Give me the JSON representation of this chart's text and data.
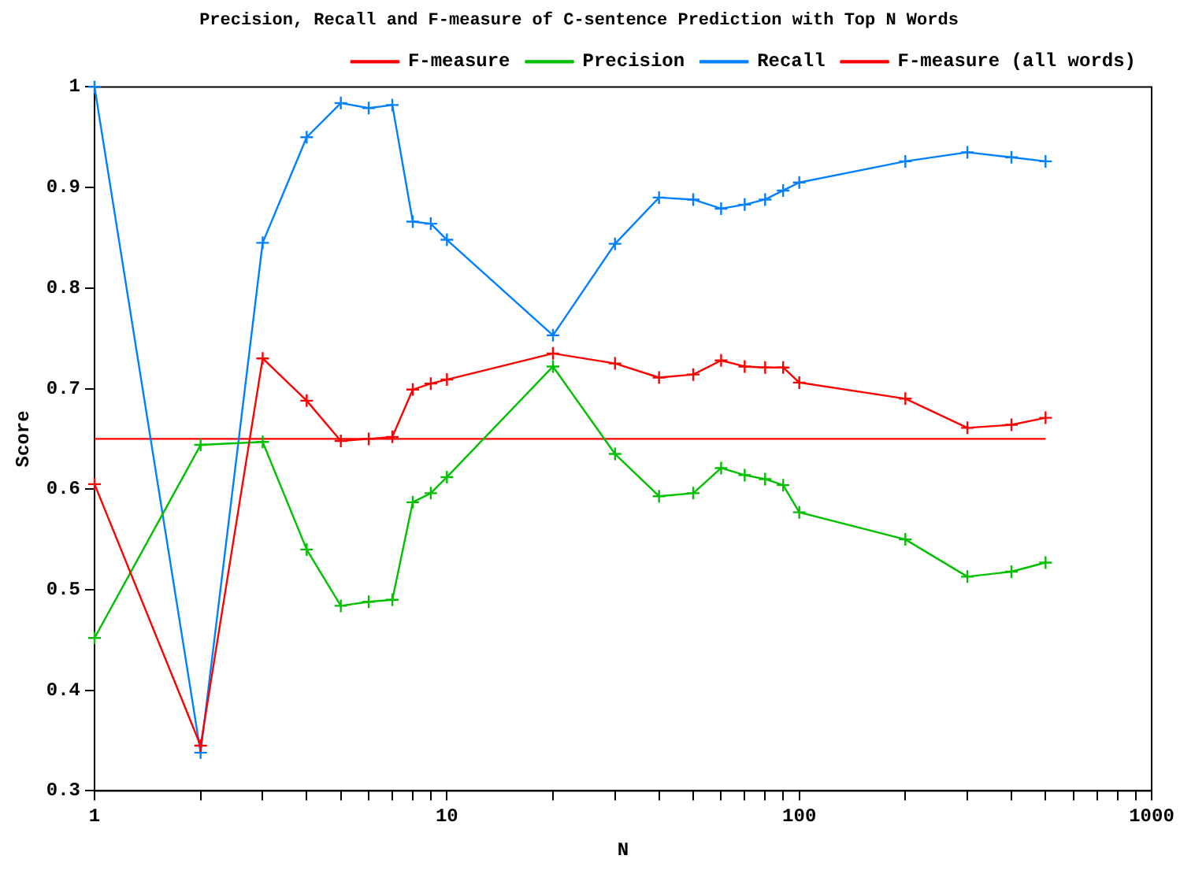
{
  "chart_data": {
    "type": "line",
    "title": "Precision, Recall and F-measure of C-sentence Prediction with Top N Words",
    "xlabel": "N",
    "ylabel": "Score",
    "log": "x",
    "grid": false,
    "legend": "top right",
    "x": [
      1,
      2,
      3,
      4,
      5,
      6,
      7,
      8,
      9,
      10,
      20,
      30,
      40,
      50,
      60,
      70,
      80,
      90,
      100,
      200,
      300,
      400,
      500
    ],
    "series": [
      {
        "name": "F-measure",
        "color": "#ff0000",
        "marker": "cross",
        "values": [
          0.605,
          0.345,
          0.73,
          0.688,
          0.648,
          0.65,
          0.652,
          0.699,
          0.705,
          0.709,
          0.735,
          0.725,
          0.711,
          0.714,
          0.728,
          0.722,
          0.721,
          0.721,
          0.706,
          0.69,
          0.661,
          0.664,
          0.671
        ]
      },
      {
        "name": "Precision",
        "color": "#00c000",
        "marker": "cross",
        "values": [
          0.452,
          0.644,
          0.647,
          0.54,
          0.484,
          0.488,
          0.49,
          0.587,
          0.596,
          0.612,
          0.722,
          0.635,
          0.593,
          0.596,
          0.621,
          0.614,
          0.61,
          0.604,
          0.577,
          0.55,
          0.513,
          0.518,
          0.527
        ]
      },
      {
        "name": "Recall",
        "color": "#0080ff",
        "marker": "cross",
        "values": [
          1.0,
          0.338,
          0.845,
          0.95,
          0.984,
          0.979,
          0.982,
          0.866,
          0.864,
          0.848,
          0.753,
          0.844,
          0.89,
          0.888,
          0.879,
          0.883,
          0.888,
          0.897,
          0.905,
          0.926,
          0.935,
          0.93,
          0.926
        ]
      },
      {
        "name": "F-measure (all words)",
        "color": "#ff0000",
        "marker": "none",
        "x": [
          1,
          500
        ],
        "values": [
          0.65,
          0.65
        ]
      }
    ],
    "xlim": [
      1,
      1000
    ],
    "xticks": [
      1,
      {
        "value": 2,
        "label": null
      },
      {
        "value": 3,
        "label": null
      },
      {
        "value": 4,
        "label": null
      },
      {
        "value": 5,
        "label": null
      },
      {
        "value": 6,
        "label": null
      },
      {
        "value": 7,
        "label": null
      },
      {
        "value": 8,
        "label": null
      },
      {
        "value": 9,
        "label": null
      },
      10,
      {
        "value": 20,
        "label": null
      },
      {
        "value": 30,
        "label": null
      },
      {
        "value": 40,
        "label": null
      },
      {
        "value": 50,
        "label": null
      },
      {
        "value": 60,
        "label": null
      },
      {
        "value": 70,
        "label": null
      },
      {
        "value": 80,
        "label": null
      },
      {
        "value": 90,
        "label": null
      },
      100,
      {
        "value": 200,
        "label": null
      },
      {
        "value": 300,
        "label": null
      },
      {
        "value": 400,
        "label": null
      },
      {
        "value": 500,
        "label": null
      },
      {
        "value": 600,
        "label": null
      },
      {
        "value": 700,
        "label": null
      },
      {
        "value": 800,
        "label": null
      },
      {
        "value": 900,
        "label": null
      },
      1000
    ],
    "ylim": [
      0.3,
      1
    ],
    "yticks": [
      0.3,
      0.4,
      0.5,
      0.6,
      0.7,
      0.8,
      0.9,
      1
    ]
  }
}
